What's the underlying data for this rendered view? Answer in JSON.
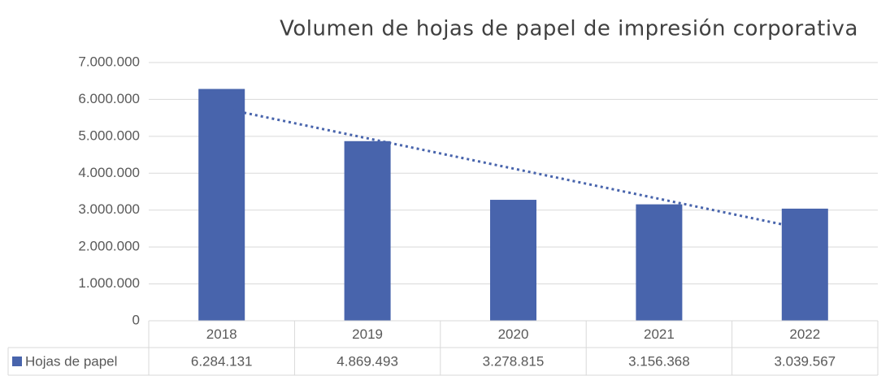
{
  "chart_data": {
    "type": "bar",
    "title": "Volumen de hojas de papel de impresión corporativa",
    "categories": [
      "2018",
      "2019",
      "2020",
      "2021",
      "2022"
    ],
    "series": [
      {
        "name": "Hojas de papel",
        "color": "#4864ac",
        "values": [
          6284131,
          4869493,
          3278815,
          3156368,
          3039567
        ],
        "value_labels": [
          "6.284.131",
          "4.869.493",
          "3.278.815",
          "3.156.368",
          "3.039.567"
        ]
      }
    ],
    "ylim": [
      0,
      7000000
    ],
    "yticks": [
      0,
      {
        "value": 1000000,
        "label": "1.000.000"
      },
      {
        "value": 2000000,
        "label": "2.000.000"
      },
      {
        "value": 3000000,
        "label": "3.000.000"
      },
      {
        "value": 4000000,
        "label": "4.000.000"
      },
      {
        "value": 5000000,
        "label": "5.000.000"
      },
      {
        "value": 6000000,
        "label": "6.000.000"
      },
      {
        "value": 7000000,
        "label": "7.000.000"
      }
    ],
    "grid": true,
    "trendline": "linear",
    "data_table": true
  }
}
